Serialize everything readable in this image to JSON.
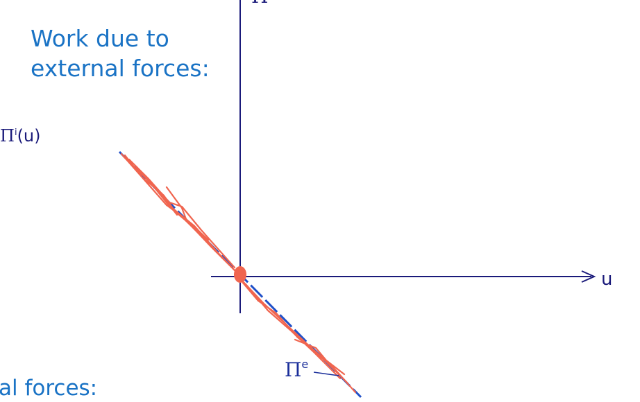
{
  "heading": {
    "line1": "Work due to",
    "line2": "external forces:"
  },
  "partial_text": {
    "bottom": "al forces:"
  },
  "labels": {
    "pi_i_symbol": "Π",
    "pi_i_sup": "i",
    "pi_i_arg": "(u)",
    "pi_e_symbol": "Π",
    "pi_e_sup": "e",
    "u_axis": "u",
    "top_axis": "Π"
  },
  "colors": {
    "heading": "#1a73c5",
    "axes": "#1a1a7a",
    "line": "#2050c8",
    "annotation": "#f0654f"
  }
}
